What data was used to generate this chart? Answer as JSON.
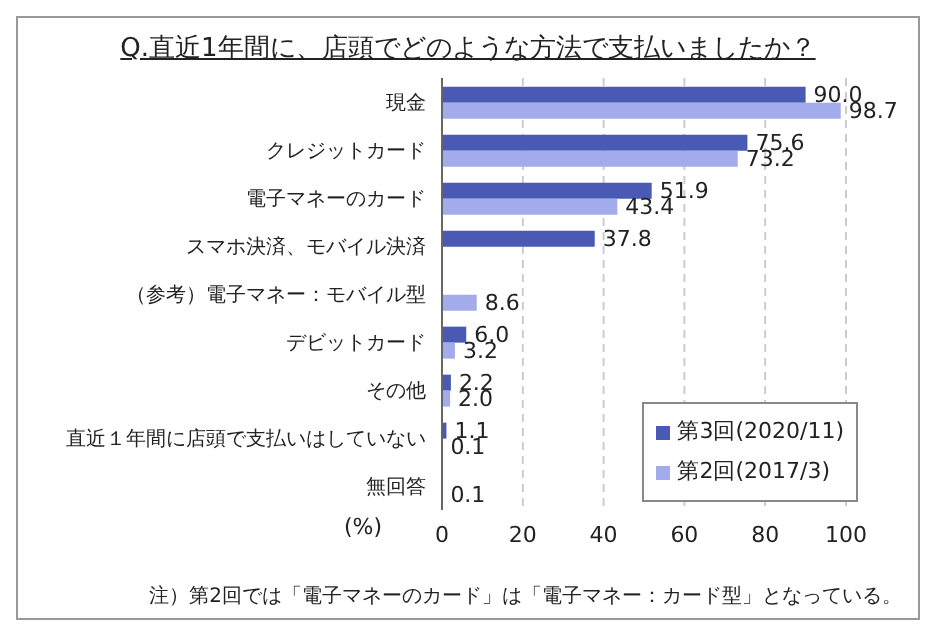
{
  "chart_data": {
    "type": "bar",
    "orientation": "horizontal",
    "title": "Q.直近1年間に、店頭でどのような方法で支払いましたか？",
    "xlabel": "(%)",
    "categories": [
      "現金",
      "クレジットカード",
      "電子マネーのカード",
      "スマホ決済、モバイル決済",
      "（参考）電子マネー：モバイル型",
      "デビットカード",
      "その他",
      "直近１年間に店頭で支払いはしていない",
      "無回答"
    ],
    "series": [
      {
        "name": "第3回(2020/11)",
        "color": "#4a5ab4",
        "values": [
          90.0,
          75.6,
          51.9,
          37.8,
          null,
          6.0,
          2.2,
          1.1,
          null
        ],
        "value_labels": [
          "90.0",
          "75.6",
          "51.9",
          "37.8",
          null,
          "6.0",
          "2.2",
          "1.1",
          null
        ]
      },
      {
        "name": "第2回(2017/3)",
        "color": "#a3acea",
        "values": [
          98.7,
          73.2,
          43.4,
          null,
          8.6,
          3.2,
          2.0,
          0.1,
          0.1
        ],
        "value_labels": [
          "98.7",
          "73.2",
          "43.4",
          null,
          "8.6",
          "3.2",
          "2.0",
          "0.1",
          "0.1"
        ]
      }
    ],
    "xlim": [
      0,
      100
    ],
    "xticks": [
      0,
      20,
      40,
      60,
      80,
      100
    ],
    "grid": "x",
    "legend": "bottom right",
    "annotations": [
      "注）第2回では「電子マネーのカード」は「電子マネー：カード型」となっている。"
    ]
  }
}
